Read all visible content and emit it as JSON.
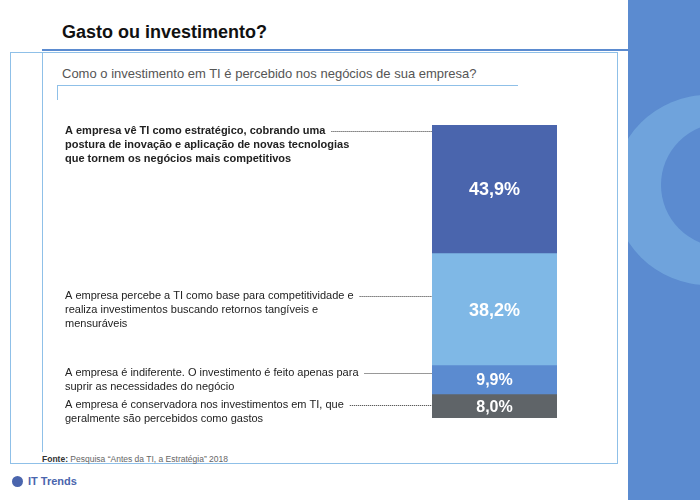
{
  "chart_data": {
    "type": "bar",
    "title": "Gasto ou investimento?",
    "subtitle": "Como o investimento em TI é percebido nos negócios de sua empresa?",
    "source": "Fonte: Pesquisa “Antes da TI, a Estratégia” 2018",
    "brand": "IT Trends",
    "categories": [
      null
    ],
    "series": [
      {
        "name": "A empresa vê TI como estratégico, cobrando uma postura de inovação e aplicação de novas tecnologias que tornem os negócios mais competitivos",
        "color": "#4a65ad",
        "values": [
          43.9
        ],
        "value_labels": [
          "43,9%"
        ]
      },
      {
        "name": "A empresa percebe a TI como base para competitividade e realiza investimentos buscando retornos tangíveis e mensuráveis",
        "color": "#7fb8e6",
        "values": [
          38.2
        ],
        "value_labels": [
          "38,2%"
        ]
      },
      {
        "name": "A empresa é indiferente. O investimento é feito apenas para suprir as necessidades do negócio",
        "color": "#5b8bd0",
        "values": [
          9.9
        ],
        "value_labels": [
          "9,9%"
        ]
      },
      {
        "name": "A empresa é conservadora nos investimentos em TI, que geralmente são percebidos como gastos",
        "color": "#5f6468",
        "values": [
          8.0
        ],
        "value_labels": [
          "8,0%"
        ]
      }
    ],
    "stacked": true,
    "data_labels": true,
    "tick_labels": false,
    "grid": false,
    "ylim": [
      0,
      100
    ]
  }
}
